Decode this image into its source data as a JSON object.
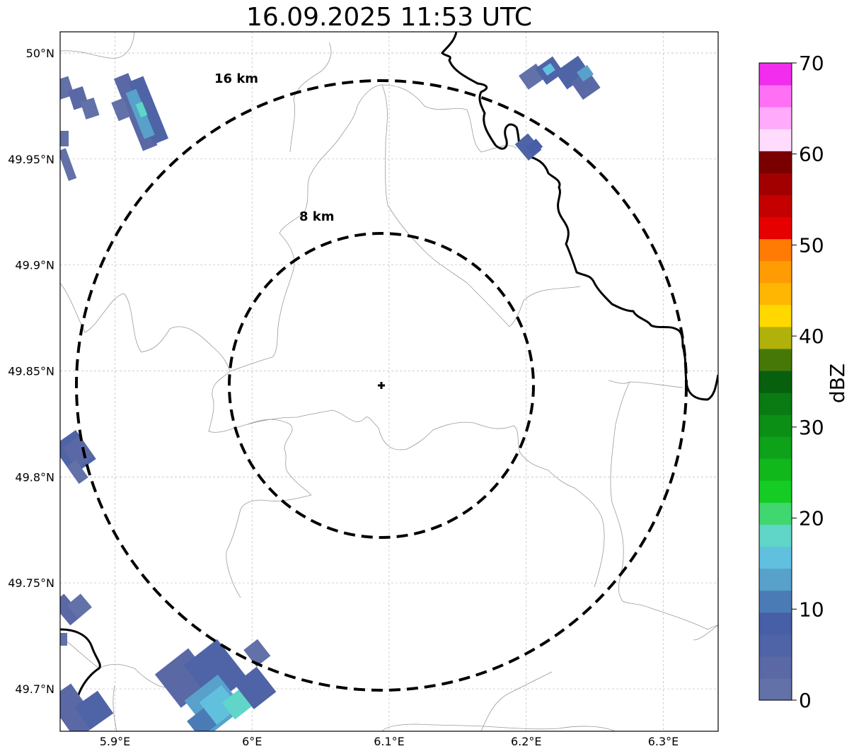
{
  "title": "16.09.2025 11:53 UTC",
  "map": {
    "lon_range": [
      5.86,
      6.34
    ],
    "lat_range": [
      49.68,
      50.01
    ],
    "x_ticks": [
      {
        "value": 5.9,
        "label": "5.9°E"
      },
      {
        "value": 6.0,
        "label": "6°E"
      },
      {
        "value": 6.1,
        "label": "6.1°E"
      },
      {
        "value": 6.2,
        "label": "6.2°E"
      },
      {
        "value": 6.3,
        "label": "6.3°E"
      }
    ],
    "y_ticks": [
      {
        "value": 50.0,
        "label": "50°N"
      },
      {
        "value": 49.95,
        "label": "49.95°N"
      },
      {
        "value": 49.9,
        "label": "49.9°N"
      },
      {
        "value": 49.85,
        "label": "49.85°N"
      },
      {
        "value": 49.8,
        "label": "49.8°N"
      },
      {
        "value": 49.75,
        "label": "49.75°N"
      },
      {
        "value": 49.7,
        "label": "49.7°N"
      }
    ],
    "center": {
      "lon": 6.094,
      "lat": 49.843
    },
    "rings": [
      {
        "label": "8 km",
        "radius_km": 8
      },
      {
        "label": "16 km",
        "radius_km": 16
      }
    ],
    "grid": true,
    "center_marker": "plus-icon"
  },
  "colorbar": {
    "label": "dBZ",
    "ticks": [
      "0",
      "10",
      "20",
      "30",
      "40",
      "50",
      "60",
      "70"
    ],
    "min": 0,
    "max": 70,
    "step": 2.5,
    "colors": [
      "#6271a8",
      "#5a69a5",
      "#4e64a6",
      "#475fa6",
      "#4b7bb5",
      "#58a1cb",
      "#62c0df",
      "#5fd6c7",
      "#3fd76e",
      "#14cc24",
      "#11b81b",
      "#0ea21a",
      "#0b8f15",
      "#0a7a12",
      "#06600e",
      "#467808",
      "#b0b10a",
      "#ffd800",
      "#ffb602",
      "#ff9c03",
      "#ff7b04",
      "#e60000",
      "#c40000",
      "#a20000",
      "#7a0000",
      "#ffdcfd",
      "#ffaafb",
      "#ff70f5",
      "#f22ded"
    ]
  }
}
